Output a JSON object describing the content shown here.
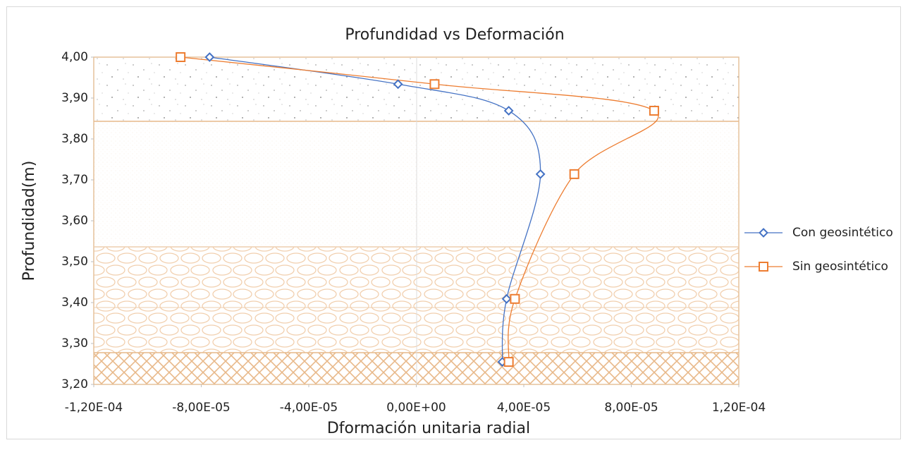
{
  "chart_data": {
    "type": "scatter",
    "title": "Profundidad vs Deformación",
    "x_label": "Dformación unitaria radial",
    "y_label": "Profundidad(m)",
    "xlim": [
      -0.00012,
      0.00012
    ],
    "xticks": [
      {
        "value": -0.00012,
        "label": "-1,20E-04"
      },
      {
        "value": -8e-05,
        "label": "-8,00E-05"
      },
      {
        "value": -4e-05,
        "label": "-4,00E-05"
      },
      {
        "value": 0,
        "label": "0,00E+00"
      },
      {
        "value": 4e-05,
        "label": "4,00E-05"
      },
      {
        "value": 8e-05,
        "label": "8,00E-05"
      },
      {
        "value": 0.00012,
        "label": "1,20E-04"
      }
    ],
    "ylim": [
      3.2,
      4.0
    ],
    "yticks": [
      {
        "value": 3.2,
        "label": "3,20"
      },
      {
        "value": 3.3,
        "label": "3,30"
      },
      {
        "value": 3.4,
        "label": "3,40"
      },
      {
        "value": 3.5,
        "label": "3,50"
      },
      {
        "value": 3.6,
        "label": "3,60"
      },
      {
        "value": 3.7,
        "label": "3,70"
      },
      {
        "value": 3.8,
        "label": "3,80"
      },
      {
        "value": 3.9,
        "label": "3,90"
      },
      {
        "value": 4.0,
        "label": "4,00"
      }
    ],
    "grid": false,
    "legend": "right",
    "smooth": true,
    "series": [
      {
        "name": "Con geosintético",
        "color": "#4472c4",
        "marker": "diamond",
        "x": [
          -7.69e-05,
          -6.8e-06,
          3.44e-05,
          4.62e-05,
          3.36e-05,
          3.2e-05
        ],
        "values": [
          4.0,
          3.934,
          3.869,
          3.714,
          3.409,
          3.255
        ]
      },
      {
        "name": "Sin geosintético",
        "color": "#ed7d31",
        "marker": "square",
        "x": [
          -8.77e-05,
          6.8e-06,
          8.85e-05,
          5.88e-05,
          3.67e-05,
          3.44e-05
        ],
        "values": [
          4.0,
          3.934,
          3.869,
          3.714,
          3.409,
          3.255
        ]
      }
    ]
  }
}
